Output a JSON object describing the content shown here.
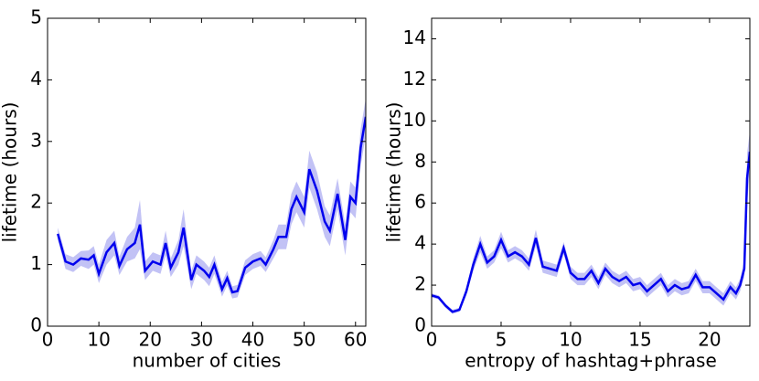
{
  "chart_data": [
    {
      "type": "line",
      "xlabel": "number of cities",
      "ylabel": "lifetime (hours)",
      "xlim": [
        0,
        62
      ],
      "ylim": [
        0,
        5
      ],
      "xticks": [
        0,
        10,
        20,
        30,
        40,
        50,
        60
      ],
      "yticks": [
        0,
        1,
        2,
        3,
        4,
        5
      ],
      "x": [
        2,
        3.5,
        5,
        6.5,
        8,
        9,
        10,
        11.5,
        13,
        14,
        15.5,
        17,
        18,
        19,
        20.5,
        22,
        23,
        24,
        25.5,
        26.5,
        28,
        29,
        30.5,
        31.5,
        32.5,
        34,
        35,
        36,
        37,
        38.5,
        40,
        41.5,
        42.5,
        44,
        45,
        46.5,
        47.5,
        48.5,
        50,
        51,
        52.5,
        54,
        55,
        56.5,
        58,
        59,
        60,
        61,
        62
      ],
      "series": [
        {
          "color": "#0000ee",
          "band_color": "#b3b3f2",
          "values": [
            1.5,
            1.05,
            1.0,
            1.1,
            1.08,
            1.15,
            0.85,
            1.2,
            1.35,
            0.98,
            1.25,
            1.35,
            1.65,
            0.9,
            1.05,
            1.0,
            1.35,
            0.95,
            1.2,
            1.6,
            0.75,
            1.0,
            0.9,
            0.8,
            1.0,
            0.6,
            0.78,
            0.55,
            0.57,
            0.95,
            1.05,
            1.1,
            1.0,
            1.25,
            1.45,
            1.45,
            1.9,
            2.1,
            1.85,
            2.55,
            2.2,
            1.7,
            1.55,
            2.15,
            1.4,
            2.1,
            2.0,
            2.9,
            3.4
          ],
          "error": [
            0.1,
            0.12,
            0.12,
            0.12,
            0.15,
            0.15,
            0.15,
            0.2,
            0.2,
            0.15,
            0.2,
            0.25,
            0.4,
            0.15,
            0.15,
            0.15,
            0.2,
            0.15,
            0.2,
            0.3,
            0.15,
            0.15,
            0.15,
            0.15,
            0.15,
            0.12,
            0.12,
            0.1,
            0.1,
            0.12,
            0.12,
            0.12,
            0.12,
            0.15,
            0.2,
            0.2,
            0.25,
            0.25,
            0.25,
            0.3,
            0.3,
            0.25,
            0.25,
            0.25,
            0.25,
            0.25,
            0.25,
            0.3,
            0.3
          ]
        }
      ]
    },
    {
      "type": "line",
      "xlabel": "entropy of hashtag+phrase",
      "ylabel": "lifetime (hours)",
      "xlim": [
        0,
        22.9
      ],
      "ylim": [
        0,
        15
      ],
      "xticks": [
        0,
        5,
        10,
        15,
        20
      ],
      "yticks": [
        0,
        2,
        4,
        6,
        8,
        10,
        12,
        14
      ],
      "x": [
        0,
        0.5,
        1,
        1.5,
        2,
        2.5,
        3,
        3.5,
        4,
        4.5,
        5,
        5.5,
        6,
        6.5,
        7,
        7.5,
        8,
        8.5,
        9,
        9.5,
        10,
        10.5,
        11,
        11.5,
        12,
        12.5,
        13,
        13.5,
        14,
        14.5,
        15,
        15.5,
        16,
        16.5,
        17,
        17.5,
        18,
        18.5,
        19,
        19.5,
        20,
        20.5,
        21,
        21.5,
        21.9,
        22.2,
        22.5,
        22.7,
        22.9
      ],
      "series": [
        {
          "color": "#0000ee",
          "band_color": "#b3b3f2",
          "values": [
            1.5,
            1.4,
            1.0,
            0.7,
            0.8,
            1.7,
            3.0,
            4.0,
            3.1,
            3.4,
            4.2,
            3.4,
            3.6,
            3.4,
            3.0,
            4.3,
            2.9,
            2.8,
            2.7,
            3.8,
            2.6,
            2.3,
            2.3,
            2.7,
            2.1,
            2.8,
            2.4,
            2.2,
            2.4,
            2.0,
            2.1,
            1.7,
            2.0,
            2.3,
            1.7,
            2.0,
            1.8,
            1.9,
            2.5,
            1.9,
            1.9,
            1.6,
            1.3,
            1.9,
            1.6,
            2.0,
            2.8,
            7.2,
            8.5
          ],
          "error": [
            0.1,
            0.1,
            0.1,
            0.1,
            0.1,
            0.2,
            0.3,
            0.4,
            0.3,
            0.3,
            0.4,
            0.3,
            0.3,
            0.3,
            0.3,
            0.4,
            0.3,
            0.3,
            0.3,
            0.3,
            0.3,
            0.3,
            0.3,
            0.3,
            0.3,
            0.3,
            0.3,
            0.3,
            0.3,
            0.3,
            0.3,
            0.3,
            0.3,
            0.3,
            0.3,
            0.3,
            0.3,
            0.3,
            0.3,
            0.3,
            0.3,
            0.3,
            0.3,
            0.3,
            0.3,
            0.3,
            0.4,
            1.2,
            1.0
          ]
        }
      ]
    }
  ]
}
